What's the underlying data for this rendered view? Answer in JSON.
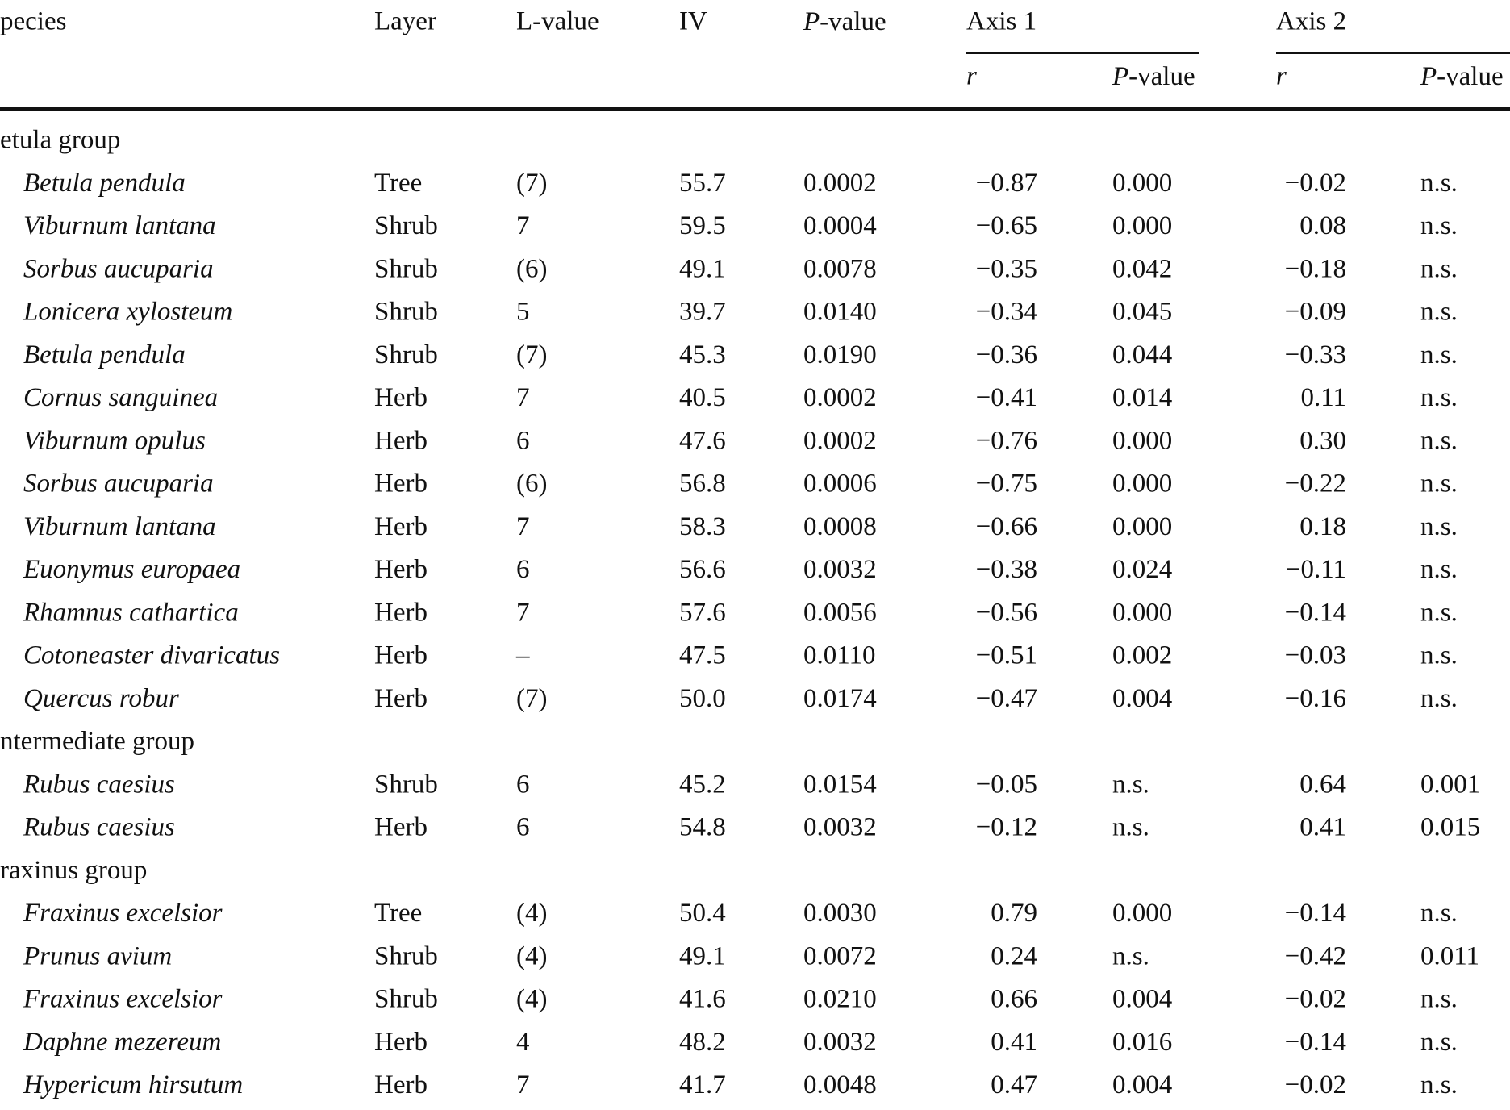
{
  "header": {
    "species": "pecies",
    "layer": "Layer",
    "lvalue": "L-value",
    "iv": "IV",
    "pvalue": {
      "italic": "P",
      "rest": "-value"
    },
    "axis1": "Axis 1",
    "axis2": "Axis 2",
    "r1": "r",
    "p1": {
      "italic": "P",
      "rest": "-value"
    },
    "r2": "r",
    "p2": {
      "italic": "P",
      "rest": "-value"
    }
  },
  "rows": [
    {
      "group": "etula group"
    },
    {
      "cells": [
        "Betula pendula",
        "Tree",
        "(7)",
        "55.7",
        "0.0002",
        "−0.87",
        "0.000",
        "−0.02",
        "n.s."
      ]
    },
    {
      "cells": [
        "Viburnum lantana",
        "Shrub",
        "7",
        "59.5",
        "0.0004",
        "−0.65",
        "0.000",
        "0.08",
        "n.s."
      ]
    },
    {
      "cells": [
        "Sorbus aucuparia",
        "Shrub",
        "(6)",
        "49.1",
        "0.0078",
        "−0.35",
        "0.042",
        "−0.18",
        "n.s."
      ]
    },
    {
      "cells": [
        "Lonicera xylosteum",
        "Shrub",
        "5",
        "39.7",
        "0.0140",
        "−0.34",
        "0.045",
        "−0.09",
        "n.s."
      ]
    },
    {
      "cells": [
        "Betula pendula",
        "Shrub",
        "(7)",
        "45.3",
        "0.0190",
        "−0.36",
        "0.044",
        "−0.33",
        "n.s."
      ]
    },
    {
      "cells": [
        "Cornus sanguinea",
        "Herb",
        "7",
        "40.5",
        "0.0002",
        "−0.41",
        "0.014",
        "0.11",
        "n.s."
      ]
    },
    {
      "cells": [
        "Viburnum opulus",
        "Herb",
        "6",
        "47.6",
        "0.0002",
        "−0.76",
        "0.000",
        "0.30",
        "n.s."
      ]
    },
    {
      "cells": [
        "Sorbus aucuparia",
        "Herb",
        "(6)",
        "56.8",
        "0.0006",
        "−0.75",
        "0.000",
        "−0.22",
        "n.s."
      ]
    },
    {
      "cells": [
        "Viburnum lantana",
        "Herb",
        "7",
        "58.3",
        "0.0008",
        "−0.66",
        "0.000",
        "0.18",
        "n.s."
      ]
    },
    {
      "cells": [
        "Euonymus europaea",
        "Herb",
        "6",
        "56.6",
        "0.0032",
        "−0.38",
        "0.024",
        "−0.11",
        "n.s."
      ]
    },
    {
      "cells": [
        "Rhamnus cathartica",
        "Herb",
        "7",
        "57.6",
        "0.0056",
        "−0.56",
        "0.000",
        "−0.14",
        "n.s."
      ]
    },
    {
      "cells": [
        "Cotoneaster divaricatus",
        "Herb",
        "–",
        "47.5",
        "0.0110",
        "−0.51",
        "0.002",
        "−0.03",
        "n.s."
      ]
    },
    {
      "cells": [
        "Quercus robur",
        "Herb",
        "(7)",
        "50.0",
        "0.0174",
        "−0.47",
        "0.004",
        "−0.16",
        "n.s."
      ]
    },
    {
      "group": "ntermediate group"
    },
    {
      "cells": [
        "Rubus caesius",
        "Shrub",
        "6",
        "45.2",
        "0.0154",
        "−0.05",
        "n.s.",
        "0.64",
        "0.001"
      ]
    },
    {
      "cells": [
        "Rubus caesius",
        "Herb",
        "6",
        "54.8",
        "0.0032",
        "−0.12",
        "n.s.",
        "0.41",
        "0.015"
      ]
    },
    {
      "group": "raxinus group"
    },
    {
      "cells": [
        "Fraxinus excelsior",
        "Tree",
        "(4)",
        "50.4",
        "0.0030",
        "0.79",
        "0.000",
        "−0.14",
        "n.s."
      ]
    },
    {
      "cells": [
        "Prunus avium",
        "Shrub",
        "(4)",
        "49.1",
        "0.0072",
        "0.24",
        "n.s.",
        "−0.42",
        "0.011"
      ]
    },
    {
      "cells": [
        "Fraxinus excelsior",
        "Shrub",
        "(4)",
        "41.6",
        "0.0210",
        "0.66",
        "0.004",
        "−0.02",
        "n.s."
      ]
    },
    {
      "cells": [
        "Daphne mezereum",
        "Herb",
        "4",
        "48.2",
        "0.0032",
        "0.41",
        "0.016",
        "−0.14",
        "n.s."
      ]
    },
    {
      "cells": [
        "Hypericum hirsutum",
        "Herb",
        "7",
        "41.7",
        "0.0048",
        "0.47",
        "0.004",
        "−0.02",
        "n.s."
      ]
    }
  ]
}
